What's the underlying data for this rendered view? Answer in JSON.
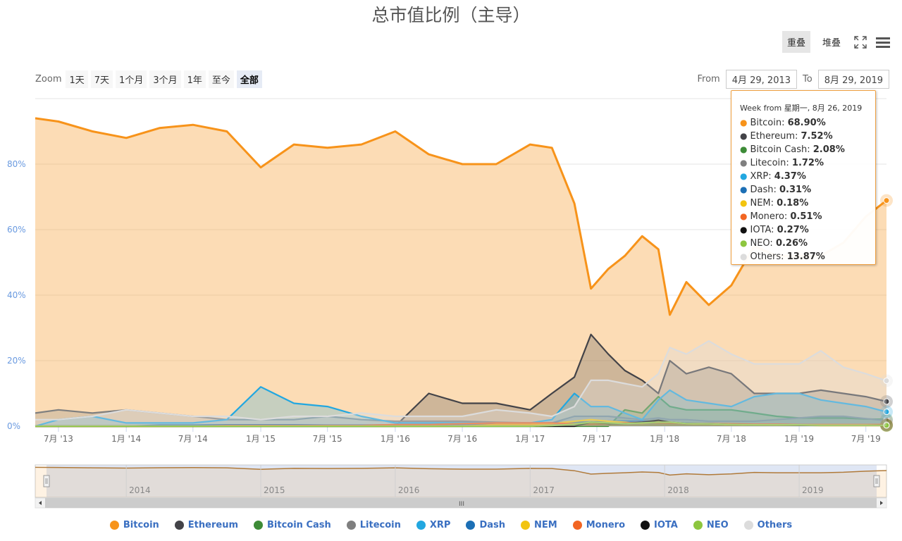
{
  "title": "总市值比例（主导）",
  "toolbar": {
    "overlap_label": "重叠",
    "stack_label": "堆叠",
    "fullscreen_icon": "fullscreen-icon",
    "menu_icon": "hamburger-menu-icon"
  },
  "zoom": {
    "label": "Zoom",
    "buttons": [
      "1天",
      "7天",
      "1个月",
      "3个月",
      "1年",
      "至今",
      "全部"
    ],
    "selected": "全部"
  },
  "range": {
    "from_label": "From",
    "from_value": "4月 29, 2013",
    "to_label": "To",
    "to_value": "8月 29, 2019"
  },
  "tooltip": {
    "header": "Week from 星期一, 8月 26, 2019",
    "rows": [
      {
        "name": "Bitcoin",
        "value": "68.90%"
      },
      {
        "name": "Ethereum",
        "value": "7.52%"
      },
      {
        "name": "Bitcoin Cash",
        "value": "2.08%"
      },
      {
        "name": "Litecoin",
        "value": "1.72%"
      },
      {
        "name": "XRP",
        "value": "4.37%"
      },
      {
        "name": "Dash",
        "value": "0.31%"
      },
      {
        "name": "NEM",
        "value": "0.18%"
      },
      {
        "name": "Monero",
        "value": "0.51%"
      },
      {
        "name": "IOTA",
        "value": "0.27%"
      },
      {
        "name": "NEO",
        "value": "0.26%"
      },
      {
        "name": "Others",
        "value": "13.87%"
      }
    ]
  },
  "navigator": {
    "year_labels": [
      "2014",
      "2015",
      "2016",
      "2017",
      "2018",
      "2019"
    ],
    "scroll_grip": "III"
  },
  "chart_data": {
    "type": "area",
    "title": "总市值比例（主导）",
    "xlabel": "",
    "ylabel": "",
    "ylim": [
      0,
      100
    ],
    "y_ticks": [
      "0%",
      "20%",
      "40%",
      "60%",
      "80%"
    ],
    "x_ticks": [
      "7月 '13",
      "1月 '14",
      "7月 '14",
      "1月 '15",
      "7月 '15",
      "1月 '16",
      "7月 '16",
      "1月 '17",
      "7月 '17",
      "1月 '18",
      "7月 '18",
      "1月 '19",
      "7月 '19"
    ],
    "x": [
      "2013-04-29",
      "2013-07-01",
      "2013-10-01",
      "2014-01-01",
      "2014-04-01",
      "2014-07-01",
      "2014-10-01",
      "2015-01-01",
      "2015-04-01",
      "2015-07-01",
      "2015-10-01",
      "2016-01-01",
      "2016-04-01",
      "2016-07-01",
      "2016-10-01",
      "2017-01-01",
      "2017-03-01",
      "2017-05-01",
      "2017-06-15",
      "2017-08-01",
      "2017-09-15",
      "2017-11-01",
      "2017-12-15",
      "2018-01-15",
      "2018-03-01",
      "2018-05-01",
      "2018-07-01",
      "2018-09-01",
      "2018-11-01",
      "2019-01-01",
      "2019-03-01",
      "2019-05-01",
      "2019-07-01",
      "2019-08-26"
    ],
    "series": [
      {
        "name": "Bitcoin",
        "color": "#f7931a",
        "values": [
          94,
          93,
          90,
          88,
          91,
          92,
          90,
          79,
          86,
          85,
          86,
          90,
          83,
          80,
          80,
          86,
          85,
          68,
          42,
          48,
          52,
          58,
          54,
          34,
          44,
          37,
          43,
          55,
          52,
          52,
          52,
          56,
          64,
          68.9
        ]
      },
      {
        "name": "Ethereum",
        "color": "#434348",
        "values": [
          0,
          0,
          0,
          0,
          0,
          0,
          0,
          0,
          0,
          0,
          0,
          0,
          10,
          7,
          7,
          5,
          10,
          15,
          28,
          22,
          17,
          14,
          10,
          20,
          16,
          18,
          16,
          10,
          10,
          10,
          11,
          10,
          9,
          7.52
        ]
      },
      {
        "name": "Bitcoin Cash",
        "color": "#3d8b37",
        "values": [
          0,
          0,
          0,
          0,
          0,
          0,
          0,
          0,
          0,
          0,
          0,
          0,
          0,
          0,
          0,
          0,
          0,
          0,
          0,
          0,
          5,
          4,
          9,
          6,
          5,
          5,
          5,
          4,
          3,
          2.5,
          2.5,
          2.5,
          2.2,
          2.08
        ]
      },
      {
        "name": "Litecoin",
        "color": "#7f7f7f",
        "values": [
          4,
          5,
          4,
          5,
          4,
          3,
          2,
          2,
          2,
          3,
          2,
          1.5,
          1.5,
          1.5,
          1.2,
          1,
          1,
          3,
          3,
          3,
          2.5,
          2,
          2.5,
          2,
          2,
          1.5,
          1.5,
          1.5,
          2,
          2.5,
          3,
          3,
          2.3,
          1.72
        ]
      },
      {
        "name": "XRP",
        "color": "#22a7e0",
        "values": [
          0,
          2,
          3,
          1,
          1,
          1,
          2,
          12,
          7,
          6,
          3,
          1,
          1,
          1,
          1,
          1,
          2,
          10,
          6,
          6,
          4,
          2,
          8,
          11,
          8,
          7,
          6,
          9,
          10,
          10,
          8,
          7,
          6,
          4.37
        ]
      },
      {
        "name": "Dash",
        "color": "#1c6fb5",
        "values": [
          0,
          0,
          0,
          0,
          0.3,
          0.3,
          0.4,
          0.4,
          0.4,
          0.3,
          0.3,
          0.4,
          0.5,
          0.7,
          0.8,
          0.8,
          1.0,
          1.3,
          1.2,
          1.5,
          1.5,
          1.5,
          1.3,
          1.0,
          0.9,
          0.8,
          0.6,
          0.6,
          0.6,
          0.5,
          0.4,
          0.4,
          0.3,
          0.31
        ]
      },
      {
        "name": "NEM",
        "color": "#f2c40f",
        "values": [
          0,
          0,
          0,
          0,
          0,
          0,
          0,
          0,
          0,
          0,
          0,
          0,
          0,
          0,
          0.5,
          0.5,
          0.8,
          1.5,
          2,
          1.5,
          1.2,
          0.8,
          1.5,
          1.2,
          0.7,
          0.6,
          0.4,
          0.4,
          0.3,
          0.3,
          0.2,
          0.2,
          0.2,
          0.18
        ]
      },
      {
        "name": "Monero",
        "color": "#f26522",
        "values": [
          0,
          0,
          0,
          0,
          0,
          0,
          0.2,
          0.2,
          0.2,
          0.2,
          0.2,
          0.5,
          0.5,
          0.8,
          1,
          1,
          1,
          0.7,
          0.6,
          0.8,
          1,
          1.2,
          1.0,
          0.9,
          0.8,
          0.8,
          0.7,
          0.6,
          0.6,
          0.5,
          0.5,
          0.5,
          0.5,
          0.51
        ]
      },
      {
        "name": "IOTA",
        "color": "#111111",
        "values": [
          0,
          0,
          0,
          0,
          0,
          0,
          0,
          0,
          0,
          0,
          0,
          0,
          0,
          0,
          0,
          0,
          0,
          0,
          1.2,
          0.8,
          0.8,
          1.2,
          1.8,
          1.2,
          0.8,
          0.7,
          0.5,
          0.4,
          0.4,
          0.3,
          0.3,
          0.3,
          0.3,
          0.27
        ]
      },
      {
        "name": "NEO",
        "color": "#8dc63f",
        "values": [
          0,
          0,
          0,
          0,
          0,
          0,
          0,
          0,
          0,
          0,
          0,
          0,
          0,
          0,
          0,
          0,
          0.2,
          0.6,
          1.2,
          1.0,
          0.8,
          1.0,
          1.2,
          1.2,
          0.8,
          0.7,
          0.5,
          0.4,
          0.4,
          0.4,
          0.3,
          0.3,
          0.3,
          0.26
        ]
      },
      {
        "name": "Others",
        "color": "#dcdcdc",
        "values": [
          2,
          2,
          3,
          5,
          4,
          3,
          3,
          2,
          3,
          3,
          4,
          3,
          3,
          3,
          5,
          4,
          3,
          6,
          14,
          14,
          13,
          12,
          16,
          24,
          22,
          26,
          22,
          19,
          19,
          19,
          23,
          18,
          16,
          13.87
        ]
      }
    ]
  }
}
